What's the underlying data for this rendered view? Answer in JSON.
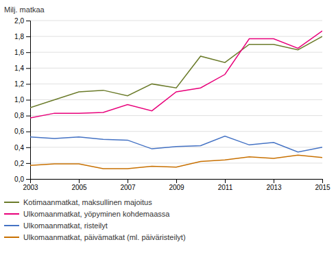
{
  "chart_data": {
    "type": "line",
    "ylabel": "Milj. matkaa",
    "x": [
      2003,
      2004,
      2005,
      2006,
      2007,
      2008,
      2009,
      2010,
      2011,
      2012,
      2013,
      2014,
      2015
    ],
    "series": [
      {
        "name": "Kotimaanmatkat, maksullinen majoitus",
        "color": "#6b7b2a",
        "values": [
          0.9,
          1.0,
          1.1,
          1.12,
          1.05,
          1.2,
          1.15,
          1.55,
          1.47,
          1.7,
          1.7,
          1.63,
          1.8
        ]
      },
      {
        "name": "Ulkomaanmatkat, yöpyminen kohdemaassa",
        "color": "#e8007a",
        "values": [
          0.77,
          0.83,
          0.83,
          0.84,
          0.94,
          0.86,
          1.1,
          1.15,
          1.32,
          1.77,
          1.77,
          1.65,
          1.87
        ]
      },
      {
        "name": "Ulkomaanmatkat, risteilyt",
        "color": "#4472c4",
        "values": [
          0.53,
          0.51,
          0.53,
          0.5,
          0.49,
          0.38,
          0.41,
          0.42,
          0.54,
          0.43,
          0.46,
          0.34,
          0.4
        ]
      },
      {
        "name": "Ulkomaanmatkat, päivämatkat (ml. päiväristeilyt)",
        "color": "#c87000",
        "values": [
          0.17,
          0.19,
          0.19,
          0.13,
          0.13,
          0.16,
          0.15,
          0.22,
          0.24,
          0.28,
          0.26,
          0.3,
          0.27
        ]
      }
    ],
    "xlim": [
      2003,
      2015
    ],
    "xticks": [
      2003,
      2005,
      2007,
      2009,
      2011,
      2013,
      2015
    ],
    "ylim": [
      0.0,
      2.0
    ],
    "yticks": [
      {
        "value": 0.0,
        "label": "0,0"
      },
      {
        "value": 0.2,
        "label": "0,2"
      },
      {
        "value": 0.4,
        "label": "0,4"
      },
      {
        "value": 0.6,
        "label": "0,6"
      },
      {
        "value": 0.8,
        "label": "0,8"
      },
      {
        "value": 1.0,
        "label": "1,0"
      },
      {
        "value": 1.2,
        "label": "1,2"
      },
      {
        "value": 1.4,
        "label": "1,4"
      },
      {
        "value": 1.6,
        "label": "1,6"
      },
      {
        "value": 1.8,
        "label": "1,8"
      },
      {
        "value": 2.0,
        "label": "2,0"
      }
    ],
    "grid": "y",
    "legend": "bottom"
  }
}
